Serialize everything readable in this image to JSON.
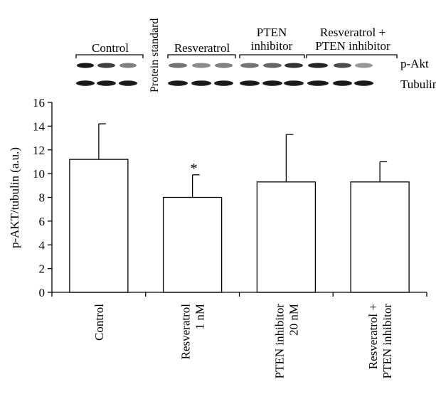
{
  "chart_data": {
    "type": "bar",
    "categories": [
      [
        "Control"
      ],
      [
        "Resveratrol",
        "1 nM"
      ],
      [
        "PTEN inhibitor",
        "20 nM"
      ],
      [
        "Resveratrol +",
        "PTEN inhibitor"
      ]
    ],
    "values": [
      11.2,
      8.0,
      9.3,
      9.3
    ],
    "error_upper": [
      14.2,
      9.9,
      13.3,
      11.0
    ],
    "annotations": [
      "",
      "*",
      "",
      ""
    ],
    "ylabel": "p-AKT/tubulin (a.u.)",
    "ylim": [
      0,
      16
    ],
    "yticks": [
      0,
      2,
      4,
      6,
      8,
      10,
      12,
      14,
      16
    ],
    "grid": false,
    "legend": "none",
    "bar_fill": "#ffffff",
    "bar_stroke": "#000000"
  },
  "blot": {
    "groups": [
      [
        "Control"
      ],
      [
        "Resveratrol"
      ],
      [
        "PTEN",
        "inhibitor"
      ],
      [
        "Resveratrol +",
        "PTEN inhibitor"
      ]
    ],
    "protein_standard_label": "Protein standard",
    "row_labels": [
      "p-Akt",
      "Tubulin"
    ]
  }
}
